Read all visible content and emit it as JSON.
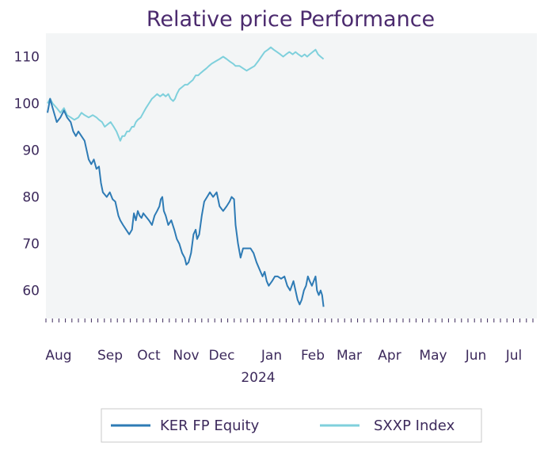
{
  "chart_data": {
    "type": "line",
    "title": "Relative price Performance",
    "xlabel": "",
    "ylabel": "",
    "ylim": [
      54,
      115
    ],
    "yticks": [
      60,
      70,
      80,
      90,
      100,
      110
    ],
    "grid": false,
    "legend_position": "bottom",
    "months": [
      {
        "label": "Aug",
        "sub": ""
      },
      {
        "label": "Sep",
        "sub": ""
      },
      {
        "label": "Oct",
        "sub": ""
      },
      {
        "label": "Nov",
        "sub": ""
      },
      {
        "label": "Dec",
        "sub": ""
      },
      {
        "label": "Jan",
        "sub": "2024"
      },
      {
        "label": "Feb",
        "sub": ""
      },
      {
        "label": "Mar",
        "sub": ""
      },
      {
        "label": "Apr",
        "sub": ""
      },
      {
        "label": "May",
        "sub": ""
      },
      {
        "label": "Jun",
        "sub": ""
      },
      {
        "label": "Jul",
        "sub": ""
      }
    ],
    "series": [
      {
        "name": "KER FP Equity",
        "color": "#2e7bb5",
        "points": [
          [
            0,
            98
          ],
          [
            0.05,
            101
          ],
          [
            0.1,
            99
          ],
          [
            0.18,
            96
          ],
          [
            0.25,
            97
          ],
          [
            0.32,
            98.5
          ],
          [
            0.38,
            97
          ],
          [
            0.45,
            96
          ],
          [
            0.5,
            94
          ],
          [
            0.55,
            93
          ],
          [
            0.6,
            94
          ],
          [
            0.66,
            93
          ],
          [
            0.72,
            92
          ],
          [
            0.8,
            88
          ],
          [
            0.85,
            87
          ],
          [
            0.9,
            88
          ],
          [
            0.95,
            86
          ],
          [
            1.0,
            86.5
          ],
          [
            1.05,
            83
          ],
          [
            1.1,
            81
          ],
          [
            1.15,
            80.5
          ],
          [
            1.2,
            80
          ],
          [
            1.28,
            81
          ],
          [
            1.35,
            79.5
          ],
          [
            1.42,
            79
          ],
          [
            1.5,
            76
          ],
          [
            1.55,
            75
          ],
          [
            1.62,
            74
          ],
          [
            1.7,
            73
          ],
          [
            1.78,
            72
          ],
          [
            1.85,
            73
          ],
          [
            1.9,
            76.5
          ],
          [
            1.95,
            75
          ],
          [
            2.0,
            77
          ],
          [
            2.05,
            76
          ],
          [
            2.1,
            75.5
          ],
          [
            2.15,
            76.5
          ],
          [
            2.2,
            76
          ],
          [
            2.3,
            75
          ],
          [
            2.38,
            74
          ],
          [
            2.45,
            76
          ],
          [
            2.52,
            77
          ],
          [
            2.58,
            78
          ],
          [
            2.62,
            79.5
          ],
          [
            2.66,
            80
          ],
          [
            2.7,
            77
          ],
          [
            2.75,
            76
          ],
          [
            2.82,
            74
          ],
          [
            2.9,
            75
          ],
          [
            2.98,
            73
          ],
          [
            3.05,
            71
          ],
          [
            3.12,
            70
          ],
          [
            3.2,
            68
          ],
          [
            3.27,
            67
          ],
          [
            3.32,
            65.5
          ],
          [
            3.38,
            66
          ],
          [
            3.45,
            68
          ],
          [
            3.52,
            72
          ],
          [
            3.58,
            73
          ],
          [
            3.62,
            71
          ],
          [
            3.68,
            72
          ],
          [
            3.75,
            76
          ],
          [
            3.82,
            79
          ],
          [
            3.9,
            80
          ],
          [
            3.98,
            81
          ],
          [
            4.05,
            80
          ],
          [
            4.12,
            81
          ],
          [
            4.18,
            78
          ],
          [
            4.25,
            77
          ],
          [
            4.32,
            78
          ],
          [
            4.38,
            79
          ],
          [
            4.42,
            80
          ],
          [
            4.47,
            79.5
          ],
          [
            4.5,
            74
          ],
          [
            4.55,
            70
          ],
          [
            4.6,
            67
          ],
          [
            4.65,
            69
          ],
          [
            4.72,
            69
          ],
          [
            4.8,
            69
          ],
          [
            4.86,
            68
          ],
          [
            4.92,
            66
          ],
          [
            5.0,
            64
          ],
          [
            5.05,
            63
          ],
          [
            5.1,
            64
          ],
          [
            5.15,
            62
          ],
          [
            5.2,
            61
          ],
          [
            5.28,
            62
          ],
          [
            5.35,
            63
          ],
          [
            5.42,
            63
          ],
          [
            5.5,
            62.5
          ],
          [
            5.58,
            63
          ],
          [
            5.65,
            61
          ],
          [
            5.72,
            60
          ],
          [
            5.8,
            62
          ],
          [
            5.85,
            60
          ],
          [
            5.9,
            58
          ],
          [
            5.95,
            57
          ],
          [
            6.0,
            58
          ],
          [
            6.06,
            60
          ],
          [
            6.12,
            61
          ],
          [
            6.17,
            63
          ],
          [
            6.22,
            62
          ],
          [
            6.28,
            61
          ],
          [
            6.33,
            62
          ],
          [
            6.38,
            63
          ],
          [
            6.42,
            60
          ],
          [
            6.47,
            59
          ],
          [
            6.52,
            60
          ],
          [
            6.56,
            59
          ],
          [
            6.6,
            56.5
          ]
        ]
      },
      {
        "name": "SXXP Index",
        "color": "#7fd0dc",
        "points": [
          [
            0,
            100
          ],
          [
            0.05,
            101
          ],
          [
            0.1,
            100
          ],
          [
            0.18,
            99
          ],
          [
            0.25,
            98
          ],
          [
            0.32,
            99
          ],
          [
            0.38,
            97.5
          ],
          [
            0.45,
            97
          ],
          [
            0.52,
            96.5
          ],
          [
            0.6,
            97
          ],
          [
            0.66,
            98
          ],
          [
            0.72,
            97.5
          ],
          [
            0.8,
            97
          ],
          [
            0.88,
            97.5
          ],
          [
            0.95,
            97
          ],
          [
            1.0,
            96.5
          ],
          [
            1.08,
            96
          ],
          [
            1.15,
            95
          ],
          [
            1.22,
            95.5
          ],
          [
            1.3,
            96
          ],
          [
            1.38,
            95
          ],
          [
            1.45,
            94
          ],
          [
            1.5,
            93
          ],
          [
            1.55,
            92
          ],
          [
            1.6,
            93
          ],
          [
            1.66,
            93
          ],
          [
            1.72,
            94
          ],
          [
            1.78,
            94
          ],
          [
            1.85,
            95
          ],
          [
            1.9,
            95
          ],
          [
            1.95,
            96
          ],
          [
            2.0,
            96.5
          ],
          [
            2.08,
            97
          ],
          [
            2.15,
            98
          ],
          [
            2.22,
            99
          ],
          [
            2.3,
            100
          ],
          [
            2.38,
            101
          ],
          [
            2.45,
            101.5
          ],
          [
            2.52,
            102
          ],
          [
            2.6,
            101.5
          ],
          [
            2.68,
            102
          ],
          [
            2.75,
            101.5
          ],
          [
            2.82,
            102
          ],
          [
            2.88,
            101
          ],
          [
            2.95,
            100.5
          ],
          [
            3.0,
            101
          ],
          [
            3.05,
            102
          ],
          [
            3.12,
            103
          ],
          [
            3.2,
            103.5
          ],
          [
            3.28,
            104
          ],
          [
            3.35,
            104
          ],
          [
            3.42,
            104.5
          ],
          [
            3.5,
            105
          ],
          [
            3.58,
            106
          ],
          [
            3.65,
            106
          ],
          [
            3.72,
            106.5
          ],
          [
            3.8,
            107
          ],
          [
            3.88,
            107.5
          ],
          [
            3.95,
            108
          ],
          [
            4.02,
            108.5
          ],
          [
            4.1,
            109
          ],
          [
            4.18,
            109.5
          ],
          [
            4.25,
            110
          ],
          [
            4.32,
            109.5
          ],
          [
            4.38,
            109
          ],
          [
            4.45,
            108.5
          ],
          [
            4.5,
            108
          ],
          [
            4.58,
            108
          ],
          [
            4.65,
            107.5
          ],
          [
            4.72,
            107
          ],
          [
            4.8,
            107.5
          ],
          [
            4.88,
            108
          ],
          [
            4.95,
            109
          ],
          [
            5.02,
            110
          ],
          [
            5.1,
            111
          ],
          [
            5.18,
            111.5
          ],
          [
            5.25,
            112
          ],
          [
            5.32,
            111.5
          ],
          [
            5.4,
            111
          ],
          [
            5.48,
            110.5
          ],
          [
            5.55,
            110
          ],
          [
            5.62,
            110.5
          ],
          [
            5.7,
            111
          ],
          [
            5.78,
            110.5
          ],
          [
            5.85,
            111
          ],
          [
            5.92,
            110.5
          ],
          [
            6.0,
            110
          ],
          [
            6.08,
            110.5
          ],
          [
            6.15,
            110
          ],
          [
            6.22,
            110.5
          ],
          [
            6.3,
            111
          ],
          [
            6.38,
            111.5
          ],
          [
            6.45,
            110.5
          ],
          [
            6.52,
            110
          ],
          [
            6.6,
            109.5
          ]
        ]
      }
    ]
  }
}
